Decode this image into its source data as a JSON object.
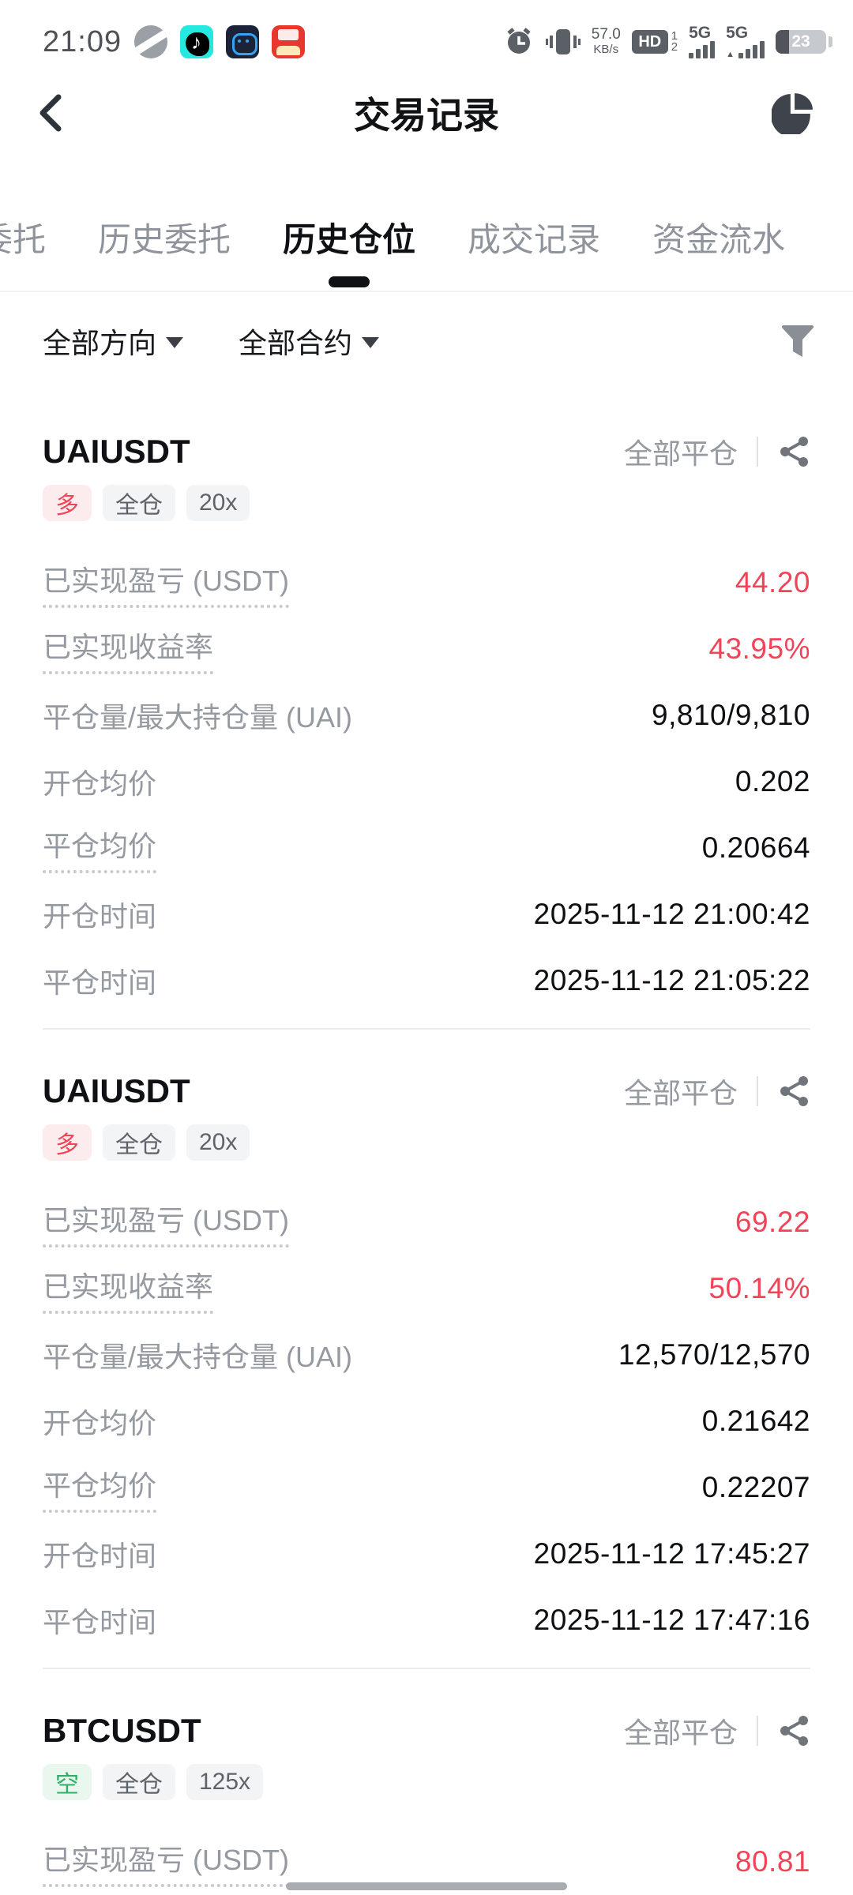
{
  "status_bar": {
    "time": "21:09",
    "net_speed_value": "57.0",
    "net_speed_unit": "KB/s",
    "hd_label": "HD",
    "hd_sim1": "1",
    "hd_sim2": "2",
    "signal1_label": "5G",
    "signal2_label": "5G",
    "battery_percent": "23",
    "app_icons": [
      "sports-ball-icon",
      "tiktok-icon",
      "robot-app-icon",
      "shopping-promo-icon"
    ],
    "right_icons": [
      "alarm-icon",
      "vibrate-icon",
      "network-speed",
      "hd-volte-badge",
      "signal-5g-sim1",
      "signal-5g-sim2",
      "battery"
    ]
  },
  "header": {
    "title": "交易记录",
    "left_icon": "back-chevron-icon",
    "right_icon": "pie-chart-icon"
  },
  "tabs": {
    "items": [
      {
        "name": "open-orders",
        "label": "委托",
        "active": false
      },
      {
        "name": "order-history",
        "label": "历史委托",
        "active": false
      },
      {
        "name": "position-history",
        "label": "历史仓位",
        "active": true
      },
      {
        "name": "trade-history",
        "label": "成交记录",
        "active": false
      },
      {
        "name": "funds-flow",
        "label": "资金流水",
        "active": false
      }
    ]
  },
  "filters": {
    "direction_label": "全部方向",
    "contract_label": "全部合约",
    "filter_icon": "funnel-icon"
  },
  "positions": [
    {
      "symbol": "UAIUSDT",
      "close_type": "全部平仓",
      "side": "多",
      "side_type": "long",
      "margin_mode": "全仓",
      "leverage": "20x",
      "rows": [
        {
          "label": "已实现盈亏 (USDT)",
          "value": "44.20",
          "pnl": true,
          "dotted": true
        },
        {
          "label": "已实现收益率",
          "value": "43.95%",
          "pnl": true,
          "dotted": true
        },
        {
          "label": "平仓量/最大持仓量 (UAI)",
          "value": "9,810/9,810",
          "pnl": false,
          "dotted": false
        },
        {
          "label": "开仓均价",
          "value": "0.202",
          "pnl": false,
          "dotted": false
        },
        {
          "label": "平仓均价",
          "value": "0.20664",
          "pnl": false,
          "dotted": true
        },
        {
          "label": "开仓时间",
          "value": "2025-11-12 21:00:42",
          "pnl": false,
          "dotted": false
        },
        {
          "label": "平仓时间",
          "value": "2025-11-12 21:05:22",
          "pnl": false,
          "dotted": false
        }
      ]
    },
    {
      "symbol": "UAIUSDT",
      "close_type": "全部平仓",
      "side": "多",
      "side_type": "long",
      "margin_mode": "全仓",
      "leverage": "20x",
      "rows": [
        {
          "label": "已实现盈亏 (USDT)",
          "value": "69.22",
          "pnl": true,
          "dotted": true
        },
        {
          "label": "已实现收益率",
          "value": "50.14%",
          "pnl": true,
          "dotted": true
        },
        {
          "label": "平仓量/最大持仓量 (UAI)",
          "value": "12,570/12,570",
          "pnl": false,
          "dotted": false
        },
        {
          "label": "开仓均价",
          "value": "0.21642",
          "pnl": false,
          "dotted": false
        },
        {
          "label": "平仓均价",
          "value": "0.22207",
          "pnl": false,
          "dotted": true
        },
        {
          "label": "开仓时间",
          "value": "2025-11-12 17:45:27",
          "pnl": false,
          "dotted": false
        },
        {
          "label": "平仓时间",
          "value": "2025-11-12 17:47:16",
          "pnl": false,
          "dotted": false
        }
      ]
    },
    {
      "symbol": "BTCUSDT",
      "close_type": "全部平仓",
      "side": "空",
      "side_type": "short",
      "margin_mode": "全仓",
      "leverage": "125x",
      "rows": [
        {
          "label": "已实现盈亏 (USDT)",
          "value": "80.81",
          "pnl": true,
          "dotted": true
        }
      ]
    }
  ],
  "colors": {
    "profit_red": "#f04558",
    "short_green": "#2fae68",
    "long_tag_bg": "#fdecee",
    "short_tag_bg": "#e9f7ee",
    "label_gray": "#9599a0",
    "tab_active": "#0f1115"
  }
}
